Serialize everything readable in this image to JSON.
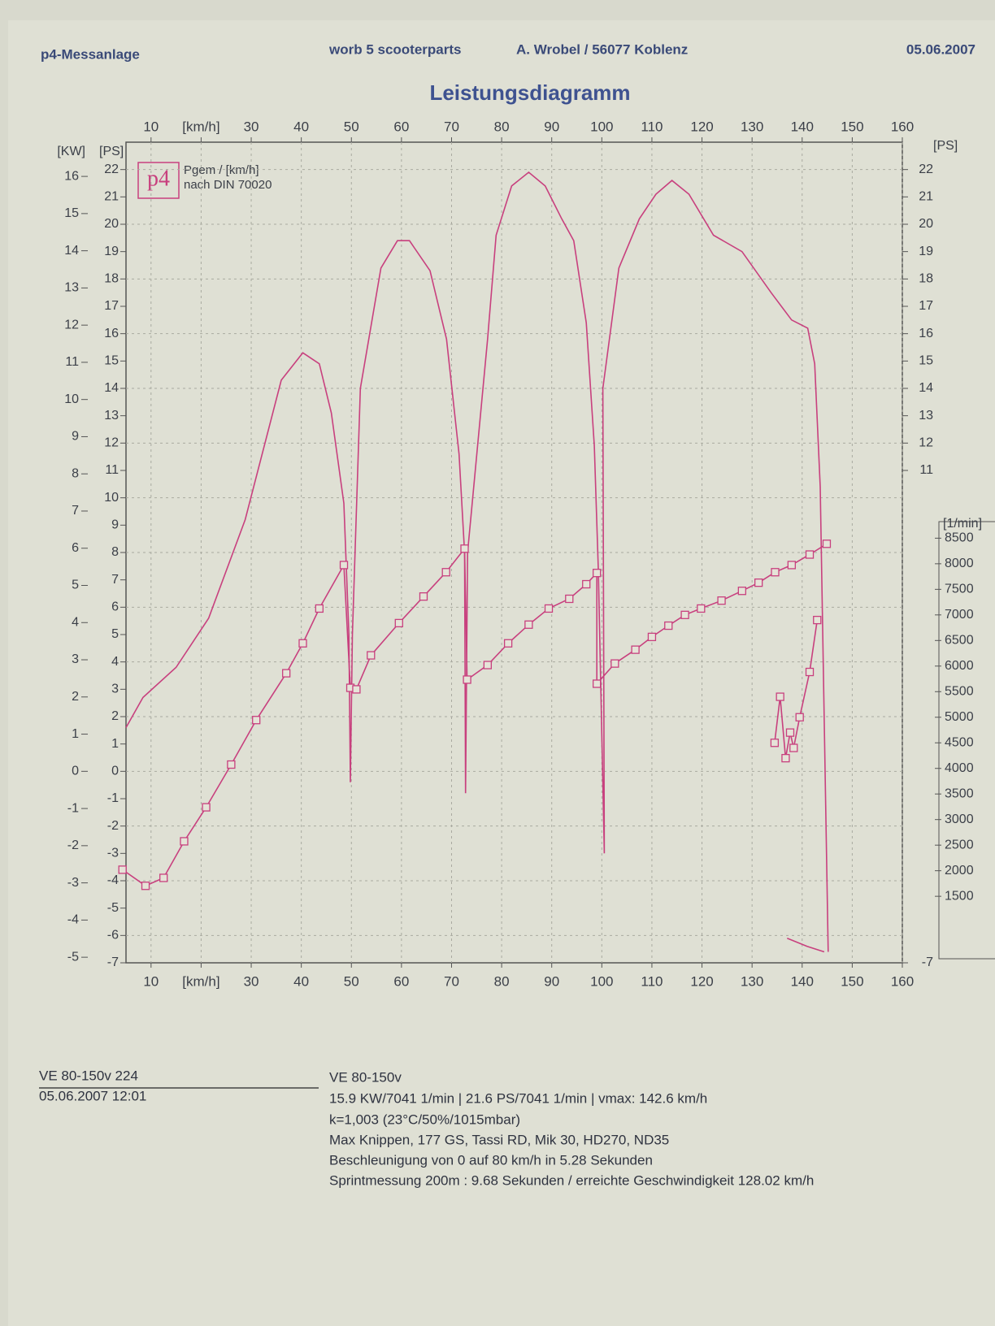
{
  "header": {
    "left": "p4-Messanlage",
    "center": "worb 5 scooterparts",
    "address": "A. Wrobel / 56077 Koblenz",
    "date": "05.06.2007"
  },
  "chart_data": {
    "type": "line",
    "title": "Leistungsdiagramm",
    "logo": "p4",
    "legend_note": "nach DIN 70020",
    "xlim": [
      5,
      160
    ],
    "xticks": [
      10,
      {
        "value": 20,
        "label": "[km/h]"
      },
      30,
      40,
      50,
      60,
      70,
      80,
      90,
      100,
      110,
      120,
      130,
      140,
      150,
      160
    ],
    "ylabel": "[PS]",
    "ylim": [
      -7,
      23
    ],
    "yticks": [
      -7,
      -6,
      -5,
      -4,
      -3,
      -2,
      -1,
      0,
      1,
      2,
      3,
      4,
      5,
      6,
      7,
      8,
      9,
      10,
      11,
      12,
      13,
      14,
      15,
      16,
      17,
      18,
      19,
      20,
      21,
      22
    ],
    "y2label": "[KW]",
    "y2lim": [
      -5.15,
      16.92
    ],
    "y2ticks": [
      -5,
      -4,
      -3,
      -2,
      -1,
      0,
      1,
      2,
      3,
      4,
      5,
      6,
      7,
      8,
      9,
      10,
      11,
      12,
      13,
      14,
      15,
      16
    ],
    "y3label": "[PS]",
    "y3ticks": [
      -7,
      11,
      12,
      13,
      14,
      15,
      16,
      17,
      18,
      19,
      20,
      21,
      22
    ],
    "y4label": "[1/min]",
    "y4lim": [
      200,
      16240
    ],
    "y4ticks": [
      1500,
      2000,
      2500,
      3000,
      3500,
      4000,
      4500,
      5000,
      5500,
      6000,
      6500,
      7000,
      7500,
      8000,
      8500
    ],
    "grid": true,
    "series": [
      {
        "name": "Pgem / [km/h]",
        "color": "#c8407e",
        "axis": "y",
        "x": [
          5,
          8.4,
          15,
          21.5,
          28.8,
          36,
          40.3,
          43.6,
          46,
          48.5,
          49.5,
          49.8,
          50.2,
          51.8,
          55.9,
          59.2,
          61.6,
          65.7,
          69,
          71.5,
          72.6,
          72.8,
          73.2,
          77.2,
          78.9,
          82,
          85.4,
          88.7,
          92,
          94.4,
          96.9,
          98.5,
          99.3,
          100.5,
          100.2,
          103.4,
          107.5,
          110.8,
          114,
          117.4,
          122.3,
          128,
          133.8,
          137.9,
          141.1,
          142.5,
          143.6,
          145.2,
          null,
          137,
          141,
          144.4
        ],
        "values": [
          1.6,
          2.7,
          3.8,
          5.6,
          9.2,
          14.3,
          15.3,
          14.9,
          13.1,
          9.8,
          5,
          -0.4,
          5,
          14,
          18.4,
          19.4,
          19.4,
          18.3,
          15.8,
          11.6,
          8,
          -0.8,
          8,
          15.8,
          19.6,
          21.4,
          21.9,
          21.4,
          20.2,
          19.4,
          16.4,
          11.9,
          7.4,
          -3,
          14,
          18.4,
          20.2,
          21.1,
          21.6,
          21.1,
          19.6,
          19,
          17.5,
          16.5,
          16.2,
          14.9,
          10.4,
          -6.6,
          null,
          -6.1,
          -6.4,
          -6.6
        ]
      },
      {
        "color": "#c8407e",
        "axis": "y4",
        "marker": "square",
        "x": [
          4.3,
          8.9,
          12.5,
          16.6,
          21,
          26,
          31,
          37,
          40.3,
          43.6,
          48.5,
          49.8,
          51,
          53.9,
          59.5,
          64.4,
          68.9,
          72.6,
          73.1,
          77.2,
          81.3,
          85.4,
          89.4,
          93.5,
          96.9,
          99,
          99,
          102.6,
          106.7,
          110,
          113.3,
          116.6,
          119.8,
          123.9,
          128,
          131.3,
          134.6,
          137.9,
          141.5,
          144.9,
          null,
          143,
          141.5,
          139.5,
          138.3,
          137.6,
          136.7,
          135.6,
          134.5
        ],
        "values": [
          2020,
          1705,
          1860,
          2575,
          3240,
          4075,
          4945,
          5860,
          6445,
          7125,
          7975,
          5575,
          5545,
          6210,
          6840,
          7360,
          7835,
          8295,
          5735,
          6020,
          6445,
          6810,
          7125,
          7315,
          7600,
          7820,
          5655,
          6050,
          6320,
          6570,
          6790,
          7000,
          7125,
          7280,
          7470,
          7630,
          7835,
          7975,
          8180,
          8390,
          null,
          6900,
          5885,
          5000,
          4400,
          4700,
          4200,
          5400,
          4500
        ]
      }
    ]
  },
  "footer": {
    "left": [
      "VE 80-150v 224",
      "05.06.2007  12:01"
    ],
    "right": [
      "VE 80-150v",
      "15.9 KW/7041 1/min  |  21.6 PS/7041 1/min  |  vmax: 142.6 km/h",
      "k=1,003 (23°C/50%/1015mbar)",
      "Max Knippen, 177 GS, Tassi RD, Mik 30, HD270, ND35",
      "Beschleunigung von 0 auf 80 km/h in 5.28 Sekunden",
      "Sprintmessung 200m : 9.68 Sekunden / erreichte Geschwindigkeit 128.02 km/h"
    ]
  }
}
